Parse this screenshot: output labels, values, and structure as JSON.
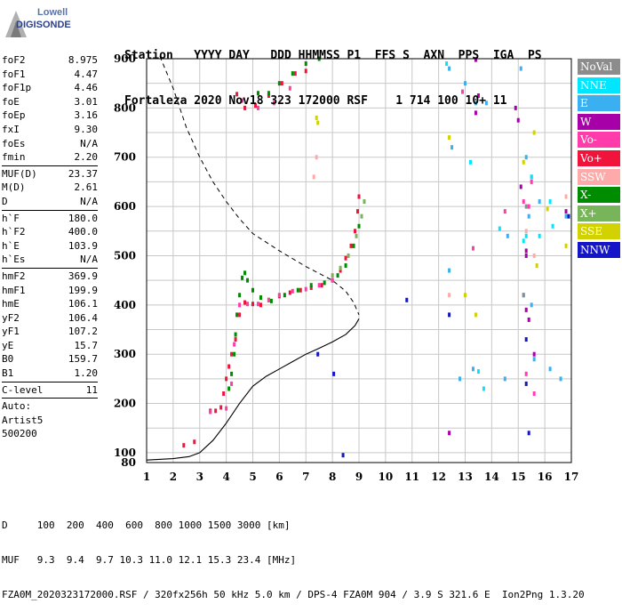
{
  "logo": {
    "line1": "Lowell",
    "line2": "DIGISONDE"
  },
  "header": {
    "labels": "Station   YYYY DAY   DDD HHMMSS P1  FFS S  AXN  PPS  IGA  PS",
    "values": "Fortaleza 2020 Nov18 323 172000 RSF    1 714 100 10+ 11"
  },
  "params_top": [
    {
      "name": "foF2",
      "value": "8.975"
    },
    {
      "name": "foF1",
      "value": "4.47"
    },
    {
      "name": "foF1p",
      "value": "4.46"
    },
    {
      "name": "foE",
      "value": "3.01"
    },
    {
      "name": "foEp",
      "value": "3.16"
    },
    {
      "name": "fxI",
      "value": "9.30"
    },
    {
      "name": "foEs",
      "value": "N/A"
    },
    {
      "name": "fmin",
      "value": "2.20"
    }
  ],
  "params_muf": [
    {
      "name": "MUF(D)",
      "value": "23.37"
    },
    {
      "name": "M(D)",
      "value": "2.61"
    },
    {
      "name": "D",
      "value": "N/A"
    }
  ],
  "params_h": [
    {
      "name": "h`F",
      "value": "180.0"
    },
    {
      "name": "h`F2",
      "value": "400.0"
    },
    {
      "name": "h`E",
      "value": "103.9"
    },
    {
      "name": "h`Es",
      "value": "N/A"
    }
  ],
  "params_hm": [
    {
      "name": "hmF2",
      "value": "369.9"
    },
    {
      "name": "hmF1",
      "value": "199.9"
    },
    {
      "name": "hmE",
      "value": "106.1"
    },
    {
      "name": "yF2",
      "value": "106.4"
    },
    {
      "name": "yF1",
      "value": "107.2"
    },
    {
      "name": "yE",
      "value": "15.7"
    },
    {
      "name": "B0",
      "value": "159.7"
    },
    {
      "name": "B1",
      "value": "1.20"
    }
  ],
  "params_c": [
    {
      "name": "C-level",
      "value": "11"
    }
  ],
  "auto": {
    "label": "Auto:",
    "artist": "Artist5",
    "version": "500200"
  },
  "legend": [
    {
      "label": "NoVal",
      "color": "#8c8c8c"
    },
    {
      "label": "NNE",
      "color": "#00e6ff"
    },
    {
      "label": "E",
      "color": "#3ab0f0"
    },
    {
      "label": "W",
      "color": "#a800a8"
    },
    {
      "label": "Vo-",
      "color": "#ff3caa"
    },
    {
      "label": "Vo+",
      "color": "#f0143c"
    },
    {
      "label": "SSW",
      "color": "#ffaaaa"
    },
    {
      "label": "X-",
      "color": "#008c00"
    },
    {
      "label": "X+",
      "color": "#78b45a"
    },
    {
      "label": "SSE",
      "color": "#d2d200"
    },
    {
      "label": "NNW",
      "color": "#1414c8"
    }
  ],
  "footer": {
    "line1": "D     100  200  400  600  800 1000 1500 3000 [km]",
    "line2": "MUF   9.3  9.4  9.7 10.3 11.0 12.1 15.3 23.4 [MHz]",
    "line3": "FZA0M_2020323172000.RSF / 320fx256h 50 kHz 5.0 km / DPS-4 FZA0M 904 / 3.9 S 321.6 E  Ion2Png 1.3.20"
  },
  "chart_data": {
    "type": "scatter",
    "xlim": [
      1,
      17
    ],
    "ylim": [
      80,
      900
    ],
    "x_ticks": [
      1,
      2,
      3,
      4,
      5,
      6,
      7,
      8,
      9,
      10,
      11,
      12,
      13,
      14,
      15,
      16,
      17
    ],
    "y_ticks": [
      80,
      100,
      200,
      300,
      400,
      500,
      600,
      700,
      800,
      900
    ],
    "grid": true,
    "series": [
      {
        "name": "Vo+",
        "color": "#f0143c",
        "x": [
          2.4,
          2.8,
          3.4,
          3.6,
          3.8,
          3.9,
          4.0,
          4.1,
          4.2,
          4.35,
          4.5,
          4.7,
          5.0,
          5.3,
          5.6,
          6.0,
          6.4,
          6.8,
          7.2,
          7.6,
          8.0,
          8.3,
          8.5,
          8.7,
          8.85,
          8.95,
          9.0,
          4.4,
          4.7,
          5.1,
          5.6,
          6.1,
          6.6,
          7.0
        ],
        "y": [
          115,
          122,
          185,
          185,
          192,
          220,
          250,
          275,
          300,
          330,
          380,
          405,
          402,
          400,
          410,
          418,
          425,
          430,
          435,
          440,
          450,
          470,
          495,
          520,
          550,
          590,
          620,
          828,
          800,
          805,
          825,
          850,
          870,
          875
        ]
      },
      {
        "name": "X-",
        "color": "#008c00",
        "x": [
          4.1,
          4.2,
          4.3,
          4.35,
          4.4,
          4.5,
          4.6,
          4.7,
          4.8,
          5.0,
          5.3,
          5.7,
          6.2,
          6.7,
          7.2,
          7.7,
          8.2,
          8.5,
          8.8,
          9.0,
          5.2,
          5.6,
          6.0,
          6.5,
          7.0,
          7.5
        ],
        "y": [
          230,
          260,
          300,
          340,
          380,
          420,
          455,
          465,
          450,
          430,
          415,
          408,
          420,
          430,
          440,
          445,
          460,
          480,
          520,
          560,
          830,
          830,
          850,
          870,
          890,
          900
        ]
      },
      {
        "name": "X+",
        "color": "#78b45a",
        "x": [
          8.0,
          8.3,
          8.6,
          8.9,
          9.1,
          9.2
        ],
        "y": [
          460,
          475,
          500,
          540,
          580,
          610
        ]
      },
      {
        "name": "Vo-",
        "color": "#ff3caa",
        "x": [
          4.0,
          4.2,
          4.3,
          4.5,
          4.8,
          5.2,
          5.6,
          6.0,
          6.5,
          7.0,
          7.5,
          8.0,
          4.6,
          5.2,
          5.8,
          6.4,
          12.9,
          13.3,
          14.5,
          15.2,
          15.4,
          15.5,
          3.4,
          15.3,
          15.6
        ],
        "y": [
          190,
          240,
          320,
          400,
          402,
          402,
          410,
          420,
          428,
          432,
          440,
          450,
          815,
          800,
          810,
          840,
          833,
          515,
          590,
          610,
          600,
          650,
          183,
          260,
          220
        ]
      },
      {
        "name": "W",
        "color": "#a800a8",
        "x": [
          13.4,
          13.5,
          14.9,
          15.0,
          15.1,
          15.3,
          15.4,
          15.6,
          16.8,
          15.3,
          12.4,
          15.3,
          13.4
        ],
        "y": [
          790,
          825,
          800,
          775,
          640,
          390,
          370,
          300,
          590,
          500,
          140,
          510,
          898
        ]
      },
      {
        "name": "E",
        "color": "#3ab0f0",
        "x": [
          12.4,
          12.5,
          13.0,
          13.4,
          13.8,
          14.6,
          15.1,
          15.3,
          15.5,
          15.8,
          16.8,
          16.2,
          12.4,
          12.8,
          13.3,
          14.5,
          15.2,
          15.4,
          16.6,
          15.5,
          15.6
        ],
        "y": [
          880,
          720,
          850,
          810,
          810,
          540,
          880,
          700,
          660,
          610,
          580,
          270,
          470,
          250,
          270,
          250,
          420,
          580,
          250,
          400,
          290
        ]
      },
      {
        "name": "NNE",
        "color": "#00e6ff",
        "x": [
          12.3,
          13.2,
          15.3,
          15.5,
          16.2,
          16.3,
          15.8,
          15.2,
          14.3,
          13.5,
          13.7
        ],
        "y": [
          890,
          690,
          540,
          660,
          610,
          560,
          540,
          530,
          555,
          265,
          230
        ]
      },
      {
        "name": "SSE",
        "color": "#d2d200",
        "x": [
          7.4,
          7.45,
          12.4,
          13.4,
          15.2,
          15.6,
          16.1,
          16.8,
          15.7,
          13.0
        ],
        "y": [
          780,
          770,
          740,
          380,
          690,
          750,
          595,
          520,
          480,
          420
        ]
      },
      {
        "name": "SSW",
        "color": "#ffaaaa",
        "x": [
          7.4,
          7.3,
          12.4,
          15.3,
          15.6,
          16.8
        ],
        "y": [
          700,
          660,
          420,
          550,
          500,
          620
        ]
      },
      {
        "name": "NNW",
        "color": "#1414c8",
        "x": [
          7.45,
          8.05,
          8.4,
          10.8,
          12.4,
          15.3,
          15.4,
          15.3,
          16.9
        ],
        "y": [
          300,
          260,
          95,
          410,
          380,
          330,
          140,
          240,
          580
        ]
      },
      {
        "name": "NoVal",
        "color": "#8c8c8c",
        "x": [
          15.2,
          15.3
        ],
        "y": [
          420,
          600
        ]
      }
    ]
  }
}
